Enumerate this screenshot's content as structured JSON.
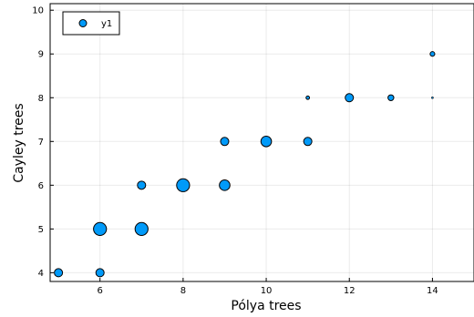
{
  "chart_data": {
    "type": "scatter",
    "xlabel": "Pólya trees",
    "ylabel": "Cayley trees",
    "xlim": [
      4.8,
      15.0
    ],
    "ylim": [
      3.8,
      10.15
    ],
    "xticks": [
      6,
      8,
      10,
      12,
      14
    ],
    "yticks": [
      4,
      5,
      6,
      7,
      8,
      9,
      10
    ],
    "grid": true,
    "legend_position": "top-left",
    "marker_color": "#009af9",
    "series": [
      {
        "name": "y1",
        "points": [
          {
            "x": 5,
            "y": 4,
            "size": 3
          },
          {
            "x": 6,
            "y": 4,
            "size": 3
          },
          {
            "x": 6,
            "y": 5,
            "size": 5
          },
          {
            "x": 7,
            "y": 5,
            "size": 5
          },
          {
            "x": 7,
            "y": 6,
            "size": 3
          },
          {
            "x": 8,
            "y": 6,
            "size": 5
          },
          {
            "x": 9,
            "y": 6,
            "size": 4
          },
          {
            "x": 9,
            "y": 7,
            "size": 3
          },
          {
            "x": 10,
            "y": 7,
            "size": 4
          },
          {
            "x": 11,
            "y": 7,
            "size": 3
          },
          {
            "x": 11,
            "y": 8,
            "size": 1
          },
          {
            "x": 12,
            "y": 8,
            "size": 3
          },
          {
            "x": 13,
            "y": 8,
            "size": 2
          },
          {
            "x": 14,
            "y": 8,
            "size": 0.3
          },
          {
            "x": 14,
            "y": 9,
            "size": 1.5
          }
        ]
      }
    ]
  }
}
